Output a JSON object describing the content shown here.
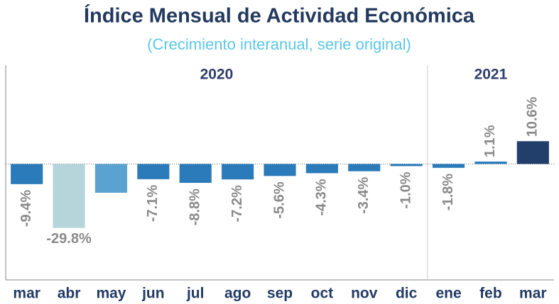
{
  "chart_data": {
    "type": "bar",
    "title": "Índice Mensual de Actividad Económica",
    "subtitle": "(Crecimiento interanual, serie original)",
    "groups": [
      {
        "label": "2020",
        "count": 10
      },
      {
        "label": "2021",
        "count": 3
      }
    ],
    "categories": [
      "mar",
      "abr",
      "may",
      "jun",
      "jul",
      "ago",
      "sep",
      "oct",
      "nov",
      "dic",
      "ene",
      "feb",
      "mar"
    ],
    "values": [
      -9.4,
      -29.8,
      -13.4,
      -7.1,
      -8.8,
      -7.2,
      -5.6,
      -4.3,
      -3.4,
      -1.0,
      -1.8,
      1.1,
      10.6
    ],
    "value_labels": [
      "-9.4%",
      "-29.8%",
      null,
      "-7.1%",
      "-8.8%",
      "-7.2%",
      "-5.6%",
      "-4.3%",
      "-3.4%",
      "-1.0%",
      "-1.8%",
      "1.1%",
      "10.6%"
    ],
    "colors": [
      "#2b7bba",
      "#b5d5da",
      "#5aa2cf",
      "#2b7bba",
      "#2b7bba",
      "#2b7bba",
      "#2b7bba",
      "#2b7bba",
      "#2b7bba",
      "#2b7bba",
      "#2b7bba",
      "#2b7bba",
      "#213f6a"
    ],
    "ylim": [
      -54,
      46
    ]
  }
}
